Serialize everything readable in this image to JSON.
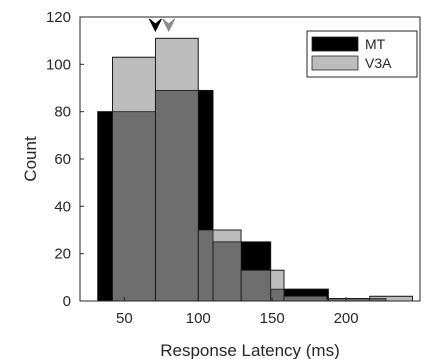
{
  "chart_data": {
    "type": "bar",
    "subtype": "overlaid-histogram",
    "title": "",
    "xlabel": "Response Latency (ms)",
    "ylabel": "Count",
    "xlim": [
      20,
      250
    ],
    "ylim": [
      0,
      120
    ],
    "xticks": [
      50,
      100,
      150,
      200
    ],
    "xtick_labels": [
      "50",
      "100",
      "150",
      "200"
    ],
    "yticks": [
      0,
      20,
      40,
      60,
      80,
      100,
      120
    ],
    "ytick_labels": [
      "0",
      "20",
      "40",
      "60",
      "80",
      "100",
      "120"
    ],
    "grid": false,
    "legend_position": "top-right",
    "series": [
      {
        "name": "MT",
        "color": "#000000",
        "bins": [
          {
            "x0": 32,
            "x1": 71,
            "count": 80
          },
          {
            "x0": 71,
            "x1": 110,
            "count": 89
          },
          {
            "x0": 110,
            "x1": 149,
            "count": 25
          },
          {
            "x0": 149,
            "x1": 188,
            "count": 5
          },
          {
            "x0": 188,
            "x1": 227,
            "count": 1
          }
        ]
      },
      {
        "name": "V3A",
        "color": "#bcbcbc",
        "bins": [
          {
            "x0": 42,
            "x1": 71,
            "count": 103
          },
          {
            "x0": 71,
            "x1": 100,
            "count": 111
          },
          {
            "x0": 100,
            "x1": 129,
            "count": 30
          },
          {
            "x0": 129,
            "x1": 158,
            "count": 13
          },
          {
            "x0": 158,
            "x1": 187,
            "count": 2
          },
          {
            "x0": 187,
            "x1": 216,
            "count": 1
          },
          {
            "x0": 216,
            "x1": 245,
            "count": 2
          }
        ]
      }
    ],
    "median_markers": [
      {
        "series": "MT",
        "x": 71,
        "color": "#000000"
      },
      {
        "series": "V3A",
        "x": 80,
        "color": "#8c8c8c"
      }
    ],
    "overlap_color": "#6e6e6e"
  }
}
